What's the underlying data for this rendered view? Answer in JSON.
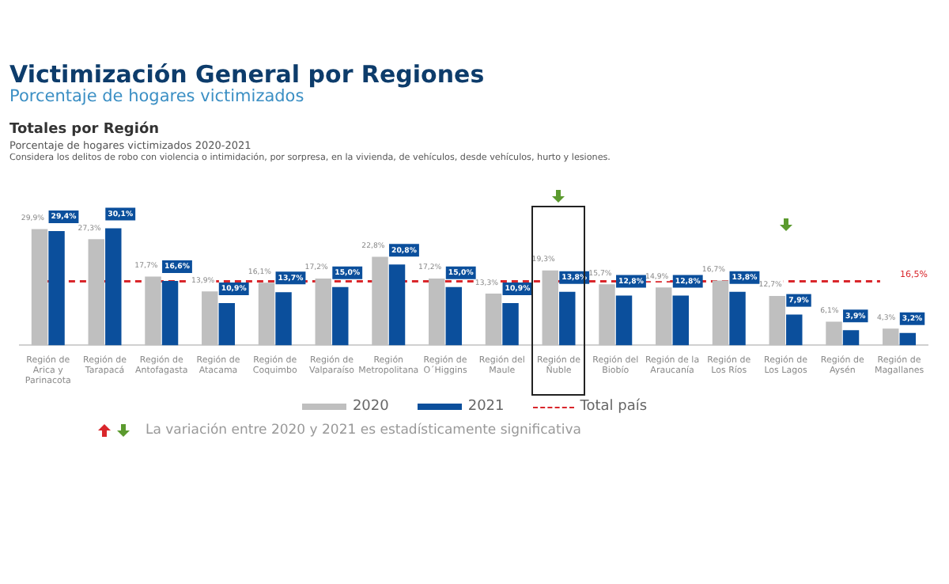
{
  "chart_data": {
    "type": "bar",
    "title": "Victimización General por Regiones",
    "subtitle": "Porcentaje de hogares victimizados",
    "annotations": [
      "Totales por Región",
      "Porcentaje de hogares victimizados 2020-2021",
      "Considera los delitos de robo con violencia o intimidación, por sorpresa, en la vivienda, de vehículos, desde vehículos, hurto y lesiones.",
      "La variación entre 2020 y 2021 es estadísticamente significativa",
      "16,5%"
    ],
    "categories": [
      "Región de Arica y Parinacota",
      "Región de Tarapacá",
      "Región de Antofagasta",
      "Región de Atacama",
      "Región de Coquimbo",
      "Región de Valparaíso",
      "Región Metropolitana",
      "Región de O´Higgins",
      "Región del Maule",
      "Región de Ñuble",
      "Región del Biobío",
      "Región de la Araucanía",
      "Región de Los Ríos",
      "Región de Los Lagos",
      "Región de Aysén",
      "Región de Magallanes"
    ],
    "series": [
      {
        "name": "2020",
        "color": "#bfbfbf",
        "values": [
          29.9,
          27.3,
          17.7,
          13.9,
          16.1,
          17.2,
          22.8,
          17.2,
          13.3,
          19.3,
          15.7,
          14.9,
          16.7,
          12.7,
          6.1,
          4.3
        ],
        "value_labels": [
          "29,9%",
          "27,3%",
          "17,7%",
          "13,9%",
          "16,1%",
          "17,2%",
          "22,8%",
          "17,2%",
          "13,3%",
          "19,3%",
          "15,7%",
          "14,9%",
          "16,7%",
          "12,7%",
          "6,1%",
          "4,3%"
        ]
      },
      {
        "name": "2021",
        "color": "#0b4f9c",
        "values": [
          29.4,
          30.1,
          16.6,
          10.9,
          13.7,
          15.0,
          20.8,
          15.0,
          10.9,
          13.8,
          12.8,
          12.8,
          13.8,
          7.9,
          3.9,
          3.2
        ],
        "value_labels": [
          "29,4%",
          "30,1%",
          "16,6%",
          "10,9%",
          "13,7%",
          "15,0%",
          "20,8%",
          "15,0%",
          "10,9%",
          "13,8%",
          "12,8%",
          "12,8%",
          "13,8%",
          "7,9%",
          "3,9%",
          "3,2%"
        ]
      }
    ],
    "ref_lines": [
      {
        "axis": "y",
        "value": 16.5,
        "label": "Total país",
        "color": "#d9262b",
        "line_style": "dashed"
      }
    ],
    "grid": false,
    "legend": "bottom",
    "tick_labels": "x"
  }
}
